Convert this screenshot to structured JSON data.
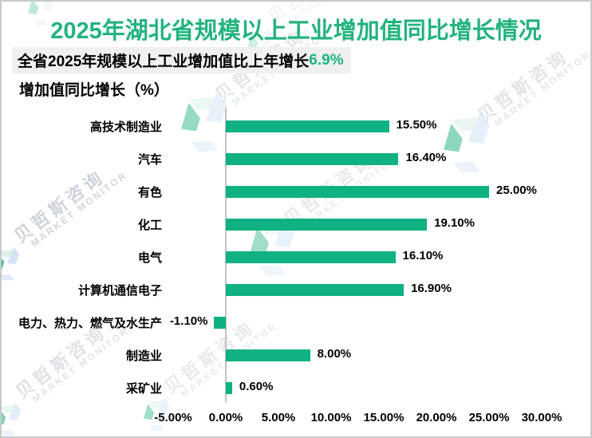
{
  "header": {
    "title": "2025年湖北省规模以上工业增加值同比增长情况",
    "subtitle_text": "全省2025年规模以上工业增加值比上年增长",
    "subtitle_highlight": "6.9%",
    "unit_label": "增加值同比增长（%）"
  },
  "chart_data": {
    "type": "bar",
    "orientation": "horizontal",
    "title": "2025年湖北省规模以上工业增加值同比增长情况",
    "xlabel": "增加值同比增长（%）",
    "ylabel": "",
    "categories": [
      "高技术制造业",
      "汽车",
      "有色",
      "化工",
      "电气",
      "计算机通信电子",
      "电力、热力、燃气及水生产",
      "制造业",
      "采矿业"
    ],
    "values": [
      15.5,
      16.4,
      25.0,
      19.1,
      16.1,
      16.9,
      -1.1,
      8.0,
      0.6
    ],
    "value_labels": [
      "15.50%",
      "16.40%",
      "25.00%",
      "19.10%",
      "16.10%",
      "16.90%",
      "-1.10%",
      "8.00%",
      "0.60%"
    ],
    "x_tick_values": [
      -5,
      0,
      5,
      10,
      15,
      20,
      25,
      30
    ],
    "x_tick_labels": [
      "-5.00%",
      "0.00%",
      "5.00%",
      "10.00%",
      "15.00%",
      "20.00%",
      "25.00%",
      "30.00%"
    ],
    "xlim": [
      -5,
      30
    ],
    "grid": false,
    "legend": false
  },
  "watermark": {
    "brand_cn": "贝哲斯咨询",
    "brand_en": "MARKET MONITOR"
  },
  "colors": {
    "title_green": "#22b37c",
    "highlight_green": "#1db57a",
    "bar_green": "#10b183",
    "subtitle_bg": "#f0f0f0",
    "frame_border": "#c9c9c9",
    "axis_line": "#c2c2c2",
    "watermark_text": "#c9cfd7",
    "logo_teal": "#2fb68c",
    "logo_blue": "#7aa9e0"
  }
}
